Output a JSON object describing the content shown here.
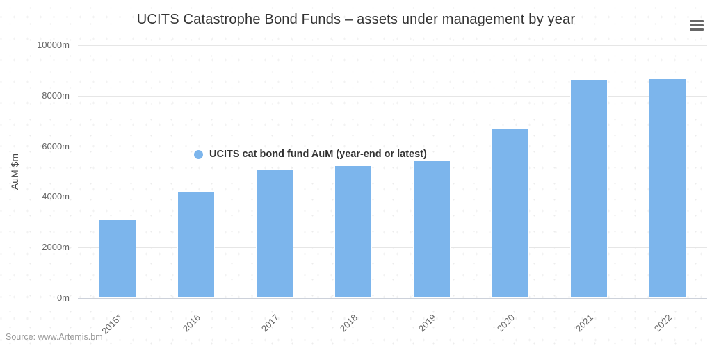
{
  "title": "UCITS Catastrophe Bond Funds – assets under management by year",
  "source_credit": "Source: www.Artemis.bm",
  "legend": {
    "label": "UCITS cat bond fund AuM (year-end or latest)",
    "marker_color": "#7cb5ec"
  },
  "colors": {
    "bar": "#7cb5ec",
    "gridline": "#e6e6e6",
    "axis_line": "#ccd1da",
    "title_text": "#333333",
    "tick_text": "#666666",
    "source_text": "#999999"
  },
  "chart_data": {
    "type": "bar",
    "title": "UCITS Catastrophe Bond Funds – assets under management by year",
    "xlabel": "",
    "ylabel": "AuM $m",
    "categories": [
      "2015*",
      "2016",
      "2017",
      "2018",
      "2019",
      "2020",
      "2021",
      "2022"
    ],
    "series": [
      {
        "name": "UCITS cat bond fund AuM (year-end or latest)",
        "values": [
          3130,
          4230,
          5080,
          5250,
          5440,
          6700,
          8650,
          8710
        ]
      }
    ],
    "ylim": [
      0,
      10000
    ],
    "ytick_interval": 2000,
    "ytick_labels": [
      "0m",
      "2000m",
      "4000m",
      "6000m",
      "8000m",
      "10000m"
    ],
    "grid": true,
    "legend_position": "inside-top-left"
  }
}
